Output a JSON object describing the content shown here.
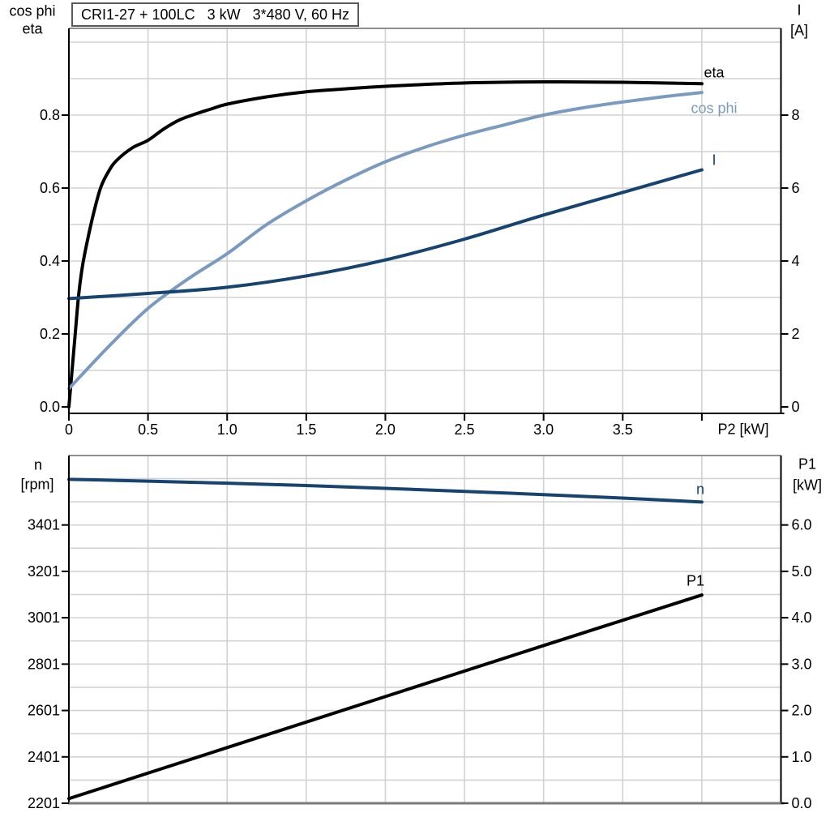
{
  "title": "CRI1-27 + 100LC   3 kW   3*480 V, 60 Hz",
  "colors": {
    "curve_black": "#000000",
    "curve_light_blue": "#7A9AC0",
    "curve_dark_blue": "#16436F",
    "grid": "#d2d2d2",
    "frame_gray": "#8f8f8f",
    "bottom_axis_gray": "#7a7a7a",
    "axis_black": "#000000",
    "background": "#ffffff"
  },
  "chart_data": [
    {
      "id": "motor-curves-top",
      "type": "line",
      "title": "CRI1-27 + 100LC   3 kW   3*480 V, 60 Hz",
      "xlabel": "P2 [kW]",
      "xlim": [
        0,
        4.5
      ],
      "grid": true,
      "x_ticks": [
        0,
        0.5,
        1,
        1.5,
        2,
        2.5,
        3,
        3.5,
        4
      ],
      "x_tick_labels": [
        "0",
        "0.5",
        "1.0",
        "1.5",
        "2.0",
        "2.5",
        "3.0",
        "3.5",
        ""
      ],
      "left_axis": {
        "title_lines": [
          "cos phi",
          "eta"
        ],
        "lim": [
          0,
          1.05
        ],
        "ticks": [
          0,
          0.2,
          0.4,
          0.6,
          0.8
        ],
        "tick_labels": [
          "0.0",
          "0.2",
          "0.4",
          "0.6",
          "0.8"
        ],
        "grid_step": 0.1
      },
      "right_axis": {
        "title_lines": [
          "I",
          "[A]"
        ],
        "lim": [
          0,
          10.5
        ],
        "ticks": [
          0,
          2,
          4,
          6,
          8
        ],
        "tick_labels": [
          "0",
          "2",
          "4",
          "6",
          "8"
        ]
      },
      "series": [
        {
          "name": "eta",
          "axis": "left",
          "color": "#000000",
          "x": [
            0,
            0.02,
            0.04,
            0.06,
            0.08,
            0.1,
            0.15,
            0.2,
            0.25,
            0.3,
            0.4,
            0.5,
            0.6,
            0.7,
            0.8,
            0.9,
            1.0,
            1.25,
            1.5,
            1.75,
            2.0,
            2.5,
            3.0,
            3.5,
            4.0
          ],
          "y": [
            0,
            0.1,
            0.2,
            0.3,
            0.37,
            0.42,
            0.52,
            0.6,
            0.645,
            0.675,
            0.71,
            0.731,
            0.762,
            0.787,
            0.803,
            0.817,
            0.83,
            0.85,
            0.864,
            0.872,
            0.879,
            0.888,
            0.891,
            0.89,
            0.886
          ]
        },
        {
          "name": "cos phi",
          "axis": "left",
          "color": "#7A9AC0",
          "x": [
            0,
            0.25,
            0.5,
            0.75,
            1.0,
            1.25,
            1.5,
            1.75,
            2.0,
            2.25,
            2.5,
            2.75,
            3.0,
            3.25,
            3.5,
            3.75,
            4.0
          ],
          "y": [
            0.05,
            0.165,
            0.27,
            0.35,
            0.42,
            0.5,
            0.565,
            0.622,
            0.672,
            0.712,
            0.745,
            0.773,
            0.8,
            0.82,
            0.836,
            0.85,
            0.862
          ]
        },
        {
          "name": "I",
          "axis": "right",
          "color": "#16436F",
          "x": [
            0,
            0.5,
            1.0,
            1.5,
            2.0,
            2.5,
            3.0,
            3.5,
            4.0
          ],
          "y": [
            2.97,
            3.11,
            3.28,
            3.59,
            4.03,
            4.6,
            5.26,
            5.88,
            6.5
          ]
        }
      ]
    },
    {
      "id": "motor-curves-bottom",
      "type": "line",
      "title": "",
      "xlabel": "",
      "xlim": [
        0,
        4.5
      ],
      "grid": true,
      "x_ticks": [],
      "x_tick_labels": [],
      "left_axis": {
        "title_lines": [
          "n",
          "[rpm]"
        ],
        "lim": [
          2201,
          3701
        ],
        "ticks": [
          2201,
          2401,
          2601,
          2801,
          3001,
          3201,
          3401
        ],
        "tick_labels": [
          "2201",
          "2401",
          "2601",
          "2801",
          "3001",
          "3201",
          "3401"
        ],
        "grid_step": 100
      },
      "right_axis": {
        "title_lines": [
          "P1",
          "[kW]"
        ],
        "lim": [
          0,
          7.5
        ],
        "ticks": [
          0,
          1,
          2,
          3,
          4,
          5,
          6
        ],
        "tick_labels": [
          "0.0",
          "1.0",
          "2.0",
          "3.0",
          "4.0",
          "5.0",
          "6.0"
        ]
      },
      "series": [
        {
          "name": "n",
          "axis": "left",
          "color": "#16436F",
          "x": [
            0,
            0.5,
            1,
            1.5,
            2,
            2.5,
            3,
            3.5,
            4
          ],
          "y": [
            3598,
            3590,
            3581,
            3571,
            3559,
            3546,
            3532,
            3517,
            3500
          ]
        },
        {
          "name": "P1",
          "axis": "right",
          "color": "#000000",
          "x": [
            0,
            1,
            2,
            3,
            4
          ],
          "y": [
            0.1,
            1.2,
            2.3,
            3.4,
            4.49
          ]
        }
      ]
    }
  ]
}
